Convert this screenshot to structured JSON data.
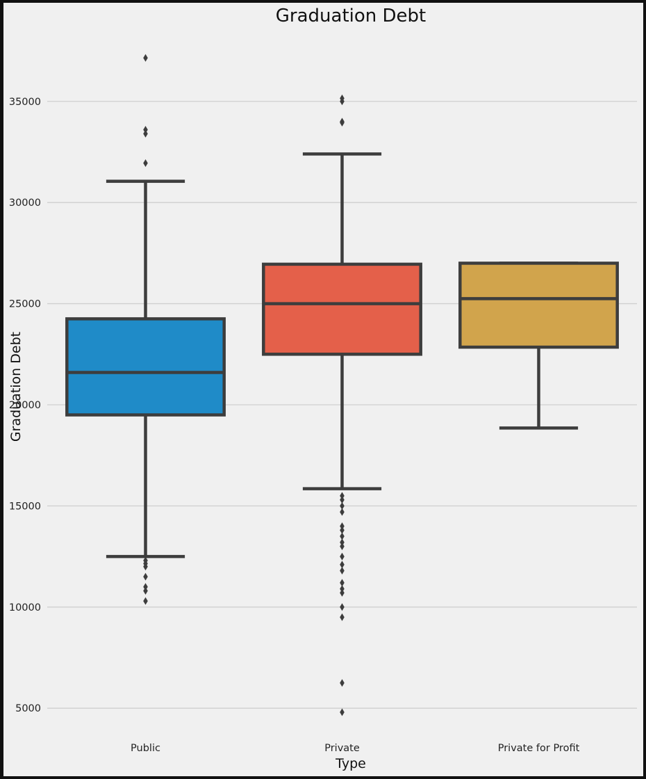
{
  "chart_data": {
    "type": "box",
    "title": "Graduation Debt",
    "xlabel": "Type",
    "ylabel": "Graduation Debt",
    "categories": [
      "Public",
      "Private",
      "Private for Profit"
    ],
    "ylim": [
      3700,
      38500
    ],
    "yticks": [
      5000,
      10000,
      15000,
      20000,
      25000,
      30000,
      35000
    ],
    "grid": true,
    "legend": "none",
    "series": [
      {
        "category": "Public",
        "color": "#1f8bc8",
        "whisker_low": 12500,
        "q1": 19500,
        "median": 21600,
        "q3": 24250,
        "whisker_high": 31050,
        "outliers": [
          37150,
          33600,
          33400,
          31950,
          12300,
          12150,
          12000,
          11500,
          11000,
          10800,
          10300
        ]
      },
      {
        "category": "Private",
        "color": "#e4604a",
        "whisker_low": 15850,
        "q1": 22500,
        "median": 25000,
        "q3": 26950,
        "whisker_high": 32400,
        "outliers": [
          35150,
          35000,
          34000,
          33950,
          15500,
          15300,
          15000,
          14700,
          14000,
          13800,
          13500,
          13200,
          13000,
          12500,
          12100,
          11800,
          11200,
          10900,
          10700,
          10000,
          9500,
          6250,
          4800
        ]
      },
      {
        "category": "Private for Profit",
        "color": "#d1a44c",
        "whisker_low": 18850,
        "q1": 22850,
        "median": 25250,
        "q3": 27000,
        "whisker_high": 27000,
        "outliers": []
      }
    ]
  }
}
